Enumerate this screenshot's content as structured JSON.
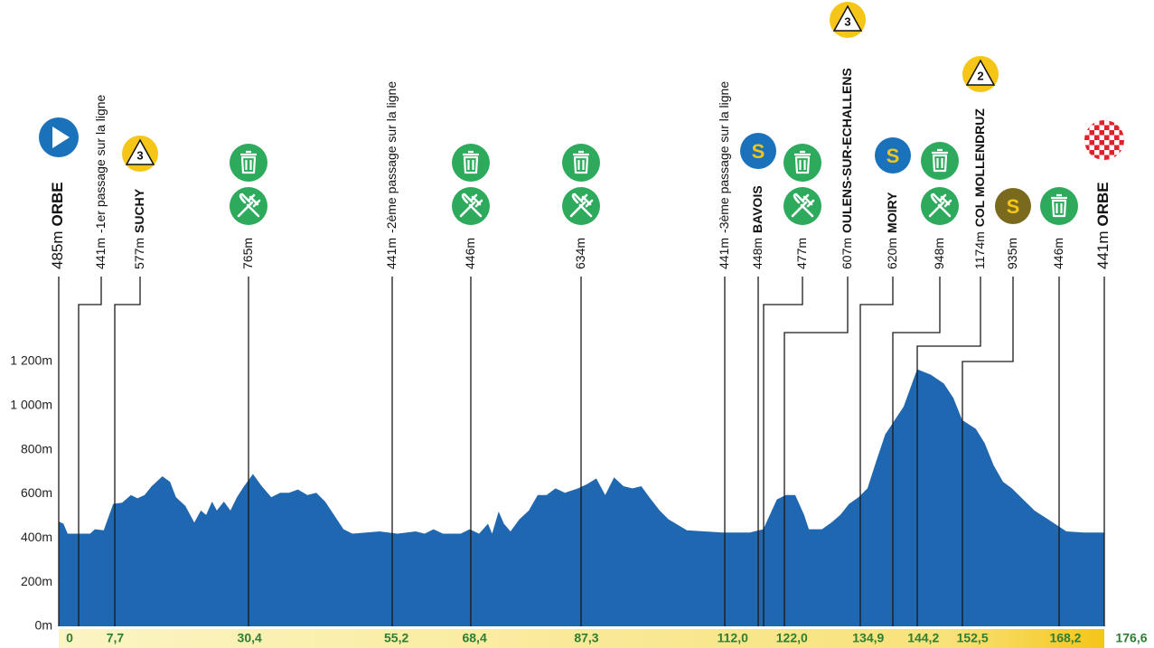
{
  "chart_data": {
    "type": "area",
    "x": [
      0.0,
      0.8,
      1.5,
      5.3,
      6.1,
      7.6,
      9.2,
      10.7,
      12.2,
      13.3,
      14.5,
      15.7,
      17.5,
      18.8,
      19.8,
      21.4,
      22.9,
      24.0,
      24.9,
      25.9,
      26.7,
      27.9,
      29.0,
      30.1,
      31.3,
      32.8,
      34.3,
      35.9,
      37.4,
      38.9,
      40.4,
      42.0,
      43.5,
      45.0,
      46.5,
      48.1,
      49.6,
      54.2,
      57.2,
      60.3,
      61.8,
      63.3,
      64.9,
      67.9,
      69.4,
      71.0,
      72.5,
      73.2,
      74.3,
      75.2,
      76.3,
      77.8,
      79.4,
      80.9,
      82.4,
      83.9,
      85.5,
      87.7,
      89.3,
      90.8,
      92.3,
      93.8,
      95.4,
      96.9,
      98.4,
      99.9,
      101.5,
      103.0,
      106.1,
      112.2,
      116.7,
      119.0,
      121.3,
      122.8,
      124.4,
      125.9,
      126.7,
      128.9,
      130.5,
      132.0,
      133.5,
      135.1,
      136.6,
      138.1,
      139.6,
      142.7,
      145.0,
      147.3,
      149.5,
      151.1,
      152.6,
      154.9,
      156.4,
      157.9,
      159.5,
      161.0,
      162.5,
      164.8,
      167.1,
      170.2,
      173.2,
      176.6
    ],
    "values": [
      475,
      465,
      420,
      420,
      440,
      435,
      555,
      560,
      595,
      580,
      595,
      635,
      680,
      655,
      585,
      545,
      470,
      525,
      505,
      565,
      525,
      565,
      525,
      585,
      635,
      690,
      635,
      585,
      605,
      605,
      620,
      595,
      605,
      565,
      505,
      440,
      420,
      430,
      420,
      430,
      420,
      440,
      420,
      420,
      440,
      420,
      465,
      420,
      520,
      465,
      430,
      485,
      525,
      595,
      595,
      625,
      605,
      625,
      645,
      670,
      595,
      675,
      635,
      625,
      635,
      580,
      525,
      485,
      435,
      425,
      425,
      440,
      575,
      595,
      595,
      505,
      440,
      440,
      470,
      505,
      555,
      585,
      625,
      750,
      870,
      995,
      1165,
      1140,
      1100,
      1035,
      935,
      895,
      830,
      730,
      655,
      625,
      585,
      525,
      485,
      430,
      425,
      425
    ],
    "color": "#1f67b1",
    "xlim": [
      0,
      176.6
    ],
    "ylim": [
      0,
      1200
    ],
    "yticks": [
      {
        "value": 0,
        "label": "0m"
      },
      {
        "value": 200,
        "label": "200m"
      },
      {
        "value": 400,
        "label": "400m"
      },
      {
        "value": 600,
        "label": "600m"
      },
      {
        "value": 800,
        "label": "800m"
      },
      {
        "value": 1000,
        "label": "1 000m"
      },
      {
        "value": 1200,
        "label": "1 200m"
      }
    ],
    "xticks": [
      0,
      {
        "value": 7.7,
        "label": "7,7"
      },
      {
        "value": 30.4,
        "label": "30,4"
      },
      {
        "value": 55.2,
        "label": "55,2"
      },
      {
        "value": 68.4,
        "label": "68,4"
      },
      {
        "value": 87.3,
        "label": "87,3"
      },
      {
        "value": 112.0,
        "label": "112,0"
      },
      {
        "value": 122.0,
        "label": "122,0"
      },
      {
        "value": 134.9,
        "label": "134,9"
      },
      {
        "value": 144.2,
        "label": "144,2"
      },
      {
        "value": 152.5,
        "label": "152,5"
      },
      {
        "value": 168.2,
        "label": "168,2"
      },
      {
        "value": 176.6,
        "label": "176,6"
      }
    ],
    "waypoints": [
      {
        "altitude": "485m",
        "name": "ORBE",
        "icons": [
          {
            "type": "start"
          }
        ]
      },
      {
        "altitude": "441m",
        "note": "-1er passage sur la ligne",
        "icons": []
      },
      {
        "altitude": "577m",
        "name": "SUCHY",
        "icons": [
          {
            "type": "climb",
            "label": "3"
          }
        ]
      },
      {
        "altitude": "765m",
        "icons": [
          {
            "type": "feed"
          },
          {
            "type": "food"
          }
        ]
      },
      {
        "altitude": "441m",
        "note": "-2ème passage sur la ligne",
        "icons": []
      },
      {
        "altitude": "446m",
        "icons": [
          {
            "type": "feed"
          },
          {
            "type": "food"
          }
        ]
      },
      {
        "altitude": "634m",
        "icons": [
          {
            "type": "feed"
          },
          {
            "type": "food"
          }
        ]
      },
      {
        "altitude": "441m",
        "note": "-3ème passage sur la ligne",
        "icons": []
      },
      {
        "altitude": "448m",
        "name": "BAVOIS",
        "icons": [
          {
            "type": "sprint",
            "label": "S",
            "color": "#1a72bb"
          }
        ]
      },
      {
        "altitude": "477m",
        "icons": [
          {
            "type": "feed"
          },
          {
            "type": "food"
          }
        ]
      },
      {
        "altitude": "607m",
        "name": "OULENS-SUR-ECHALLENS",
        "icons": [
          {
            "type": "climb",
            "label": "3"
          }
        ]
      },
      {
        "altitude": "620m",
        "name": "MOIRY",
        "icons": [
          {
            "type": "sprint",
            "label": "S",
            "color": "#1a72bb"
          }
        ]
      },
      {
        "altitude": "948m",
        "icons": [
          {
            "type": "feed"
          },
          {
            "type": "food"
          }
        ]
      },
      {
        "altitude": "1174m",
        "name": "COL MOLLENDRUZ",
        "icons": [
          {
            "type": "climb",
            "label": "2"
          }
        ]
      },
      {
        "altitude": "935m",
        "icons": [
          {
            "type": "sprint",
            "label": "S",
            "color": "#7a6a1e"
          }
        ]
      },
      {
        "altitude": "446m",
        "icons": [
          {
            "type": "feed"
          }
        ]
      },
      {
        "altitude": "441m",
        "name": "ORBE",
        "icons": [
          {
            "type": "finish"
          }
        ]
      }
    ]
  }
}
